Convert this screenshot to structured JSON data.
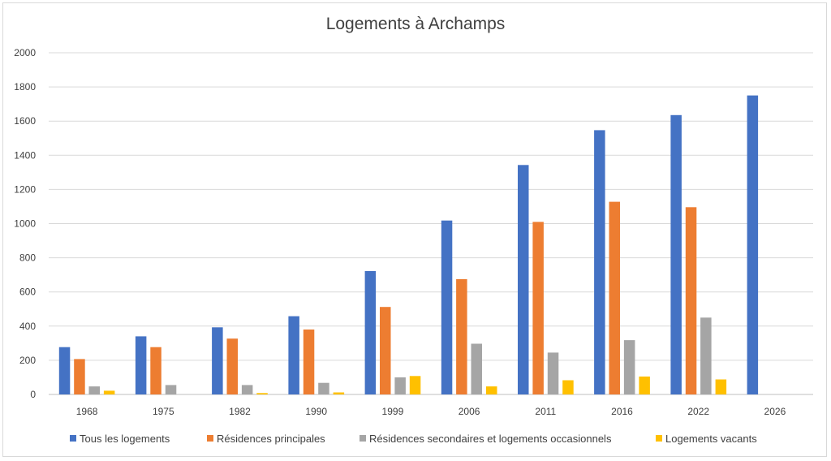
{
  "chart_data": {
    "type": "bar",
    "title": "Logements à Archamps",
    "categories": [
      "1968",
      "1975",
      "1982",
      "1990",
      "1999",
      "2006",
      "2011",
      "2016",
      "2022",
      "2026"
    ],
    "ylim": [
      0,
      2000
    ],
    "yticks": [
      "0",
      "200",
      "400",
      "600",
      "800",
      "1000",
      "1200",
      "1400",
      "1600",
      "1800",
      "2000"
    ],
    "grid": true,
    "legend_position": "bottom",
    "series": [
      {
        "name": "Tous les logements",
        "color": "#4472C4",
        "values": [
          277,
          340,
          393,
          458,
          722,
          1018,
          1343,
          1547,
          1635,
          1750
        ]
      },
      {
        "name": "Résidences principales",
        "color": "#ED7D31",
        "values": [
          207,
          277,
          327,
          380,
          512,
          675,
          1010,
          1128,
          1096,
          null
        ]
      },
      {
        "name": "Résidences secondaires et logements occasionnels",
        "color": "#A5A5A5",
        "values": [
          47,
          55,
          55,
          68,
          100,
          297,
          245,
          318,
          450,
          null
        ]
      },
      {
        "name": "Logements vacants",
        "color": "#FFC000",
        "values": [
          22,
          0,
          8,
          12,
          108,
          47,
          83,
          105,
          88,
          null
        ]
      }
    ]
  }
}
